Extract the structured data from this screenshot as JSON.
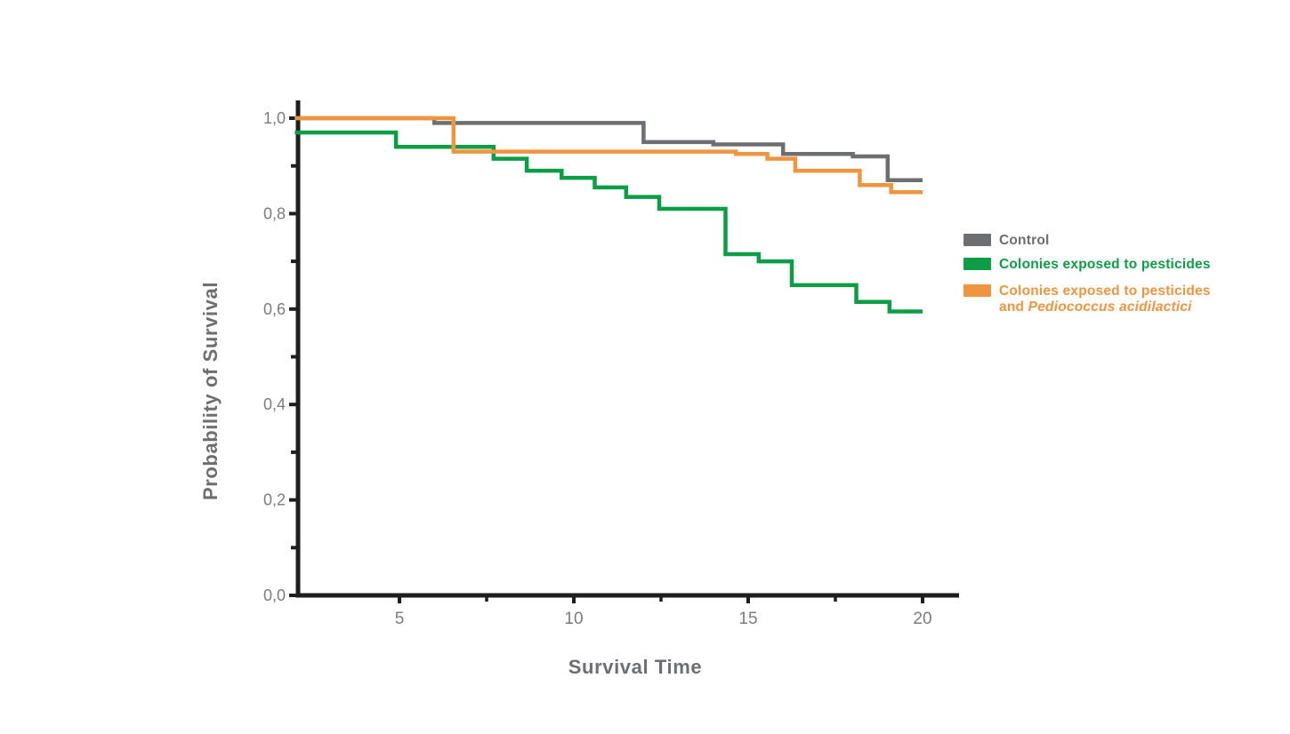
{
  "chart_data": {
    "type": "line",
    "subtype": "kaplan-meier-step",
    "title": "",
    "xlabel": "Survival Time",
    "ylabel": "Probability of Survival",
    "xlim": [
      2,
      21
    ],
    "ylim": [
      0,
      1.03
    ],
    "grid": false,
    "legend_position": "right-outside",
    "x_ticks": [
      {
        "value": 5,
        "label": "5"
      },
      {
        "value": 10,
        "label": "10"
      },
      {
        "value": 15,
        "label": "15"
      },
      {
        "value": 20,
        "label": "20"
      }
    ],
    "x_minor_ticks": [
      7.5,
      12.5,
      17.5
    ],
    "y_ticks": [
      {
        "value": 0.0,
        "label": "0,0"
      },
      {
        "value": 0.2,
        "label": "0,2"
      },
      {
        "value": 0.4,
        "label": "0,4"
      },
      {
        "value": 0.6,
        "label": "0,6"
      },
      {
        "value": 0.8,
        "label": "0,8"
      },
      {
        "value": 1.0,
        "label": "1,0"
      }
    ],
    "y_minor_ticks": [
      0.1,
      0.3,
      0.5,
      0.7,
      0.9
    ],
    "series": [
      {
        "id": "control",
        "name": "Control",
        "color": "#6d6e71",
        "steps": [
          [
            2,
            1.0
          ],
          [
            6,
            0.99
          ],
          [
            12,
            0.95
          ],
          [
            14,
            0.945
          ],
          [
            16,
            0.925
          ],
          [
            18,
            0.92
          ],
          [
            19,
            0.87
          ],
          [
            20,
            0.87
          ]
        ]
      },
      {
        "id": "pesticides",
        "name": "Colonies exposed to pesticides",
        "color": "#0d9d45",
        "steps": [
          [
            2,
            0.97
          ],
          [
            4.9,
            0.94
          ],
          [
            7.7,
            0.915
          ],
          [
            8.65,
            0.89
          ],
          [
            9.65,
            0.875
          ],
          [
            10.6,
            0.855
          ],
          [
            11.5,
            0.835
          ],
          [
            12.45,
            0.81
          ],
          [
            14.35,
            0.715
          ],
          [
            15.3,
            0.7
          ],
          [
            16.25,
            0.65
          ],
          [
            18.1,
            0.615
          ],
          [
            19.05,
            0.595
          ],
          [
            20,
            0.595
          ]
        ]
      },
      {
        "id": "pesticides-probiotic",
        "name": "Colonies exposed to pesticides and Pediococcus acidilactici",
        "color": "#f0953f",
        "steps": [
          [
            2,
            1.0
          ],
          [
            6.55,
            0.93
          ],
          [
            14.65,
            0.925
          ],
          [
            15.55,
            0.915
          ],
          [
            16.35,
            0.89
          ],
          [
            18.2,
            0.86
          ],
          [
            19.1,
            0.845
          ],
          [
            20,
            0.845
          ]
        ]
      }
    ]
  },
  "axes": {
    "x_title": "Survival Time",
    "y_title": "Probability of Survival"
  },
  "legend": {
    "items": [
      {
        "label": "Control",
        "color": "#6d6e71"
      },
      {
        "label": "Colonies exposed to pesticides",
        "color": "#0d9d45"
      },
      {
        "label_line1": "Colonies exposed to pesticides",
        "label_line2_prefix": "and ",
        "label_line2_italic": "Pediococcus acidilactici",
        "color": "#f0953f"
      }
    ]
  },
  "colors": {
    "axis": "#1e1e1e",
    "tick_label": "#7b7c7f",
    "axis_title": "#6d6e71",
    "background": "#ffffff"
  }
}
